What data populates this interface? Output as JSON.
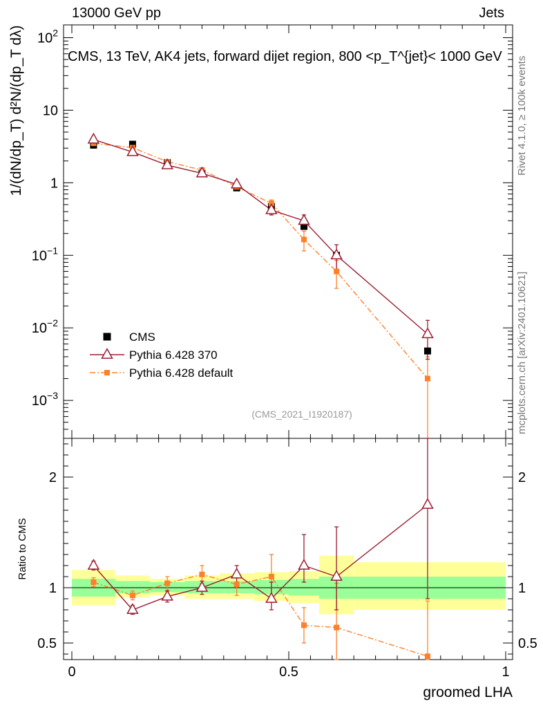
{
  "header": {
    "left": "13000 GeV pp",
    "right": "Jets"
  },
  "side_labels": {
    "rivet": "Rivet 4.1.0, ≥ 100k events",
    "mcplots": "mcplots.cern.ch [arXiv:2401.10621]"
  },
  "colors": {
    "cms": "#000000",
    "pythia370": "#9b1b30",
    "pythia_default": "#ff7f2a",
    "band_inner": "#99ff99",
    "band_outer": "#ffff99",
    "watermark": "#999999"
  },
  "chart_data": [
    {
      "type": "scatter",
      "panel": "main",
      "title": "CMS, 13 TeV, AK4 jets, forward dijet region, 800 <p_T^{jet}< 1000 GeV",
      "ylabel": "1/(dN/dp_T) d²N/(dp_T dλ)",
      "yscale": "log",
      "ylim": [
        0.0003,
        150
      ],
      "xlim": [
        -0.02,
        1.0
      ],
      "yticks": [
        {
          "v": 0.001,
          "base": "10",
          "exp": "−3"
        },
        {
          "v": 0.01,
          "base": "10",
          "exp": "−2"
        },
        {
          "v": 0.1,
          "base": "10",
          "exp": "−1"
        },
        {
          "v": 1,
          "base": "1",
          "exp": ""
        },
        {
          "v": 10,
          "base": "10",
          "exp": ""
        },
        {
          "v": 100,
          "base": "10",
          "exp": "2"
        }
      ],
      "watermark": "(CMS_2021_I1920187)",
      "legend": {
        "position": "lower-left",
        "entries": [
          "CMS",
          "Pythia 6.428 370",
          "Pythia 6.428 default"
        ]
      },
      "bins": [
        [
          0.0,
          0.1
        ],
        [
          0.1,
          0.18
        ],
        [
          0.18,
          0.26
        ],
        [
          0.26,
          0.34
        ],
        [
          0.34,
          0.42
        ],
        [
          0.42,
          0.5
        ],
        [
          0.5,
          0.57
        ],
        [
          0.57,
          0.65
        ],
        [
          0.65,
          1.0
        ]
      ],
      "series": [
        {
          "name": "CMS",
          "marker": "square",
          "x": [
            0.05,
            0.14,
            0.22,
            0.3,
            0.38,
            0.46,
            0.535,
            0.61,
            0.82
          ],
          "y": [
            3.3,
            3.4,
            1.9,
            1.35,
            0.85,
            0.47,
            0.25,
            0.1,
            0.0048
          ]
        },
        {
          "name": "Pythia 6.428 370",
          "marker": "triangle-open",
          "line": "solid",
          "x": [
            0.05,
            0.14,
            0.22,
            0.3,
            0.38,
            0.46,
            0.535,
            0.61,
            0.82
          ],
          "y": [
            3.95,
            2.65,
            1.75,
            1.35,
            0.95,
            0.42,
            0.3,
            0.1,
            0.0082
          ],
          "err_up": [
            0.2,
            0.15,
            0.1,
            0.08,
            0.08,
            0.06,
            0.06,
            0.04,
            0.0045
          ],
          "err_down": [
            0.2,
            0.15,
            0.1,
            0.08,
            0.08,
            0.06,
            0.06,
            0.04,
            0.0045
          ]
        },
        {
          "name": "Pythia 6.428 default",
          "marker": "square-small",
          "line": "dashdot",
          "x": [
            0.05,
            0.14,
            0.22,
            0.3,
            0.38,
            0.46,
            0.535,
            0.61,
            0.82
          ],
          "y": [
            3.5,
            3.05,
            1.95,
            1.5,
            0.88,
            0.52,
            0.165,
            0.06,
            0.002
          ],
          "err_up": [
            0.2,
            0.15,
            0.1,
            0.08,
            0.06,
            0.06,
            0.05,
            0.025,
            0.002
          ],
          "err_down": [
            0.2,
            0.15,
            0.1,
            0.08,
            0.06,
            0.06,
            0.05,
            0.025,
            0.0019
          ]
        }
      ]
    },
    {
      "type": "scatter",
      "panel": "ratio",
      "xlabel": "groomed LHA",
      "ylabel": "Ratio to CMS",
      "ylim": [
        0.35,
        2.35
      ],
      "xlim": [
        -0.02,
        1.0
      ],
      "xticks": [
        0,
        0.5,
        1
      ],
      "yticks": [
        0.5,
        1,
        2
      ],
      "reference_line": 1,
      "bands": {
        "bins": [
          [
            0.0,
            0.1
          ],
          [
            0.1,
            0.18
          ],
          [
            0.18,
            0.26
          ],
          [
            0.26,
            0.34
          ],
          [
            0.34,
            0.42
          ],
          [
            0.42,
            0.5
          ],
          [
            0.5,
            0.57
          ],
          [
            0.57,
            0.65
          ],
          [
            0.65,
            1.0
          ]
        ],
        "inner_lo": [
          0.92,
          0.95,
          0.96,
          0.95,
          0.95,
          0.94,
          0.93,
          0.9,
          0.9
        ],
        "inner_hi": [
          1.08,
          1.06,
          1.05,
          1.06,
          1.06,
          1.07,
          1.08,
          1.1,
          1.1
        ],
        "outer_lo": [
          0.84,
          0.91,
          0.93,
          0.9,
          0.9,
          0.88,
          0.86,
          0.76,
          0.8
        ],
        "outer_hi": [
          1.16,
          1.11,
          1.08,
          1.11,
          1.13,
          1.14,
          1.15,
          1.29,
          1.23
        ]
      },
      "series": [
        {
          "name": "Pythia 6.428 370",
          "marker": "triangle-open",
          "line": "solid",
          "x": [
            0.05,
            0.14,
            0.22,
            0.3,
            0.38,
            0.46,
            0.535,
            0.61,
            0.82
          ],
          "y": [
            1.2,
            0.8,
            0.92,
            1.0,
            1.12,
            0.9,
            1.2,
            1.1,
            1.75
          ],
          "err_up": [
            0.04,
            0.04,
            0.05,
            0.06,
            0.08,
            0.15,
            0.28,
            0.45,
            0.6
          ],
          "err_down": [
            0.04,
            0.04,
            0.05,
            0.06,
            0.08,
            0.1,
            0.15,
            0.3,
            0.85
          ]
        },
        {
          "name": "Pythia 6.428 default",
          "marker": "square-small",
          "line": "dashdot",
          "x": [
            0.05,
            0.14,
            0.22,
            0.3,
            0.38,
            0.46,
            0.535,
            0.61,
            0.82
          ],
          "y": [
            1.05,
            0.93,
            1.04,
            1.12,
            1.03,
            1.1,
            0.66,
            0.64,
            0.38
          ],
          "err_up": [
            0.04,
            0.04,
            0.06,
            0.08,
            0.1,
            0.2,
            0.16,
            0.4,
            0.5
          ],
          "err_down": [
            0.04,
            0.04,
            0.06,
            0.08,
            0.1,
            0.2,
            0.16,
            0.3,
            0.1
          ]
        }
      ]
    }
  ]
}
